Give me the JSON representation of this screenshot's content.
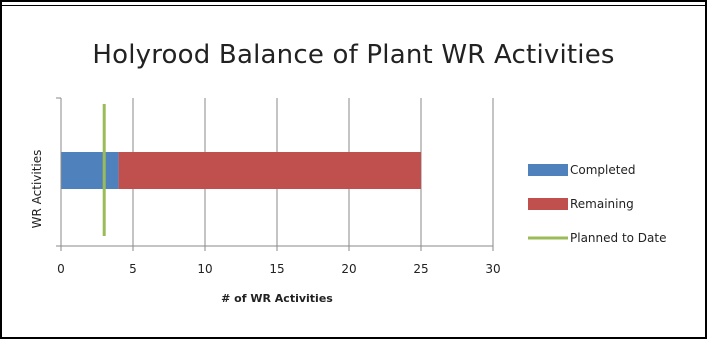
{
  "chart_data": {
    "type": "bar",
    "orientation": "horizontal",
    "stacked": true,
    "title": "Holyrood Balance of Plant WR Activities",
    "xlabel": "# of WR Activities",
    "ylabel": "WR Activities",
    "xlim": [
      0,
      30
    ],
    "xticks": [
      "0",
      "5",
      "10",
      "15",
      "20",
      "25",
      "30"
    ],
    "categories": [
      "WR Activities"
    ],
    "series": [
      {
        "name": "Completed",
        "values": [
          4
        ],
        "color": "#4f81bd"
      },
      {
        "name": "Remaining",
        "values": [
          21
        ],
        "color": "#c0504d"
      }
    ],
    "reference_lines": [
      {
        "name": "Planned to Date",
        "value": 3,
        "color": "#9bbb59"
      }
    ],
    "grid": true,
    "legend": "right"
  }
}
